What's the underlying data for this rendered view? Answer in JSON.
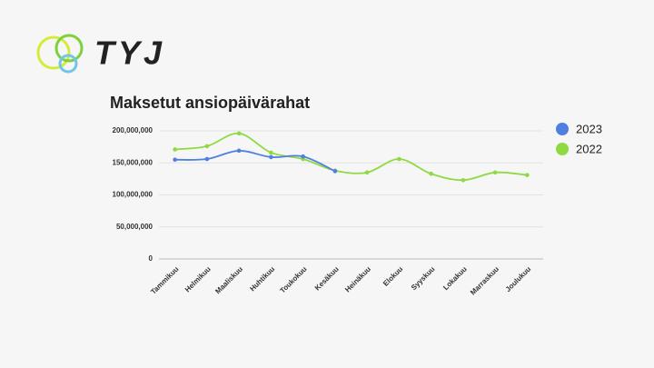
{
  "logo": "TYJ",
  "chart_data": {
    "type": "line",
    "title": "Maksetut ansiopäivärahat",
    "categories": [
      "Tammikuu",
      "Helmikuu",
      "Maaliskuu",
      "Huhtikuu",
      "Toukokuu",
      "Kesäkuu",
      "Heinäkuu",
      "Elokuu",
      "Syyskuu",
      "Lokakuu",
      "Marraskuu",
      "Joulukuu"
    ],
    "series": [
      {
        "name": "2023",
        "color": "#4f7fe0",
        "values": [
          155000000,
          156000000,
          169000000,
          159000000,
          160000000,
          137000000,
          null,
          null,
          null,
          null,
          null,
          null
        ]
      },
      {
        "name": "2022",
        "color": "#8fd942",
        "values": [
          171000000,
          176000000,
          196000000,
          166000000,
          156000000,
          138000000,
          135000000,
          156000000,
          133000000,
          123000000,
          135000000,
          131000000
        ]
      }
    ],
    "ylim": [
      0,
      200000000
    ],
    "yticks": [
      0,
      {
        "value": 50000000,
        "label": "50,000,000"
      },
      {
        "value": 100000000,
        "label": "100,000,000"
      },
      {
        "value": 150000000,
        "label": "150,000,000"
      },
      {
        "value": 200000000,
        "label": "200,000,000"
      }
    ],
    "grid": true,
    "smooth": true,
    "legend": "right"
  }
}
